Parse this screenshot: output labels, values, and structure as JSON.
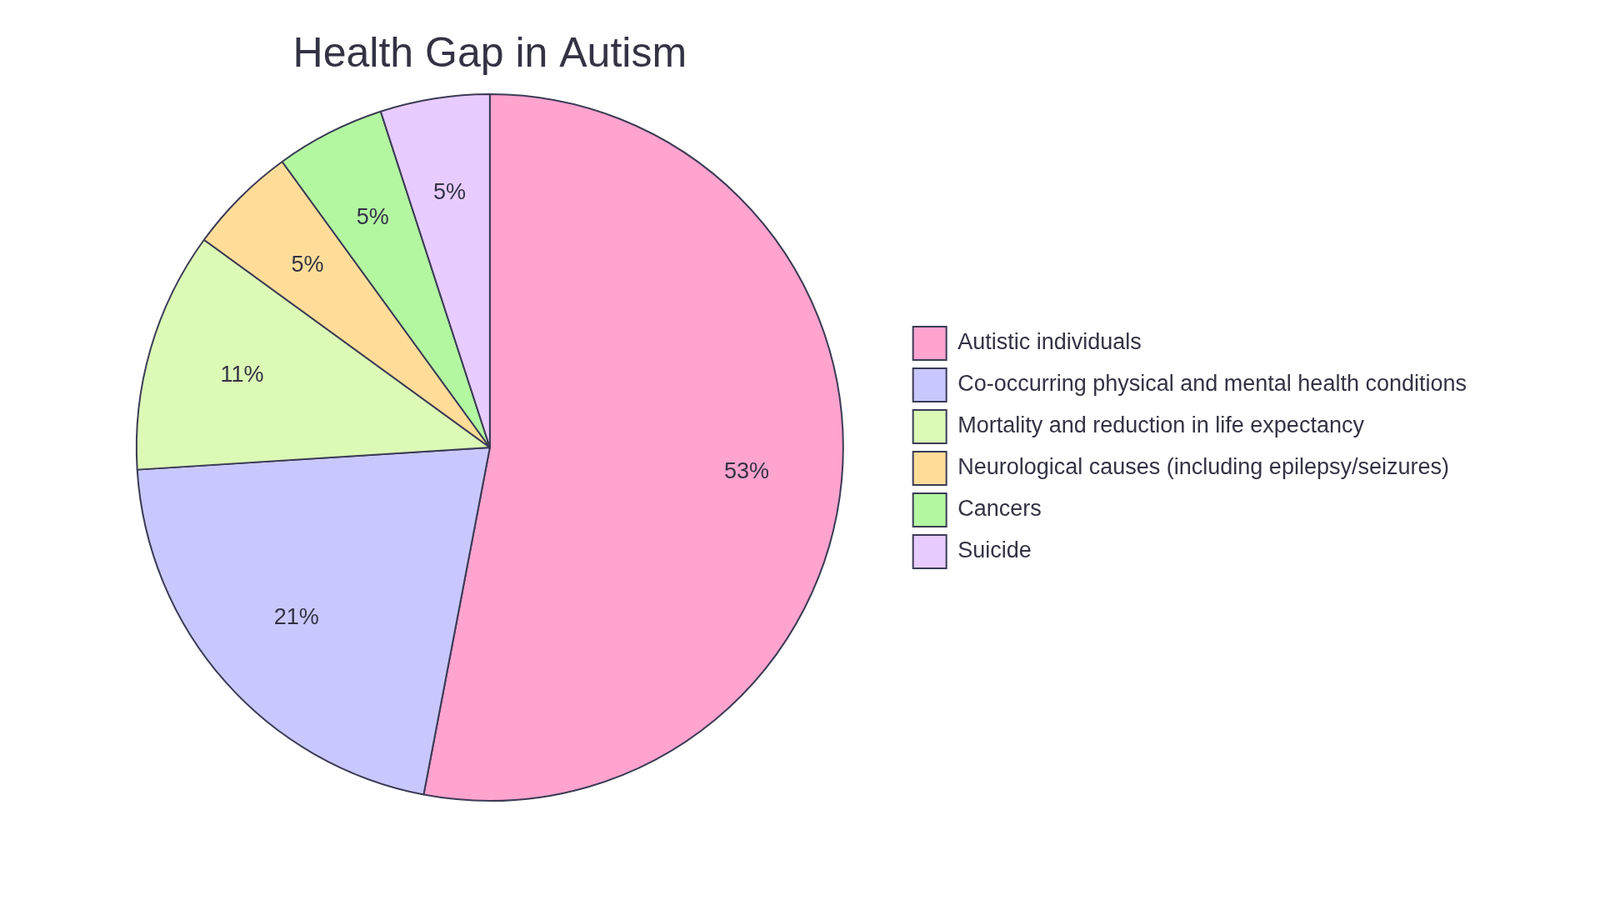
{
  "chart_data": {
    "type": "pie",
    "title": "Health Gap in Autism",
    "categories": [
      "Autistic individuals",
      "Co-occurring physical and mental health conditions",
      "Mortality and reduction in life expectancy",
      "Neurological causes (including epilepsy/seizures)",
      "Cancers",
      "Suicide"
    ],
    "values": [
      53,
      21,
      11,
      5,
      5,
      5
    ],
    "value_labels": [
      "53%",
      "21%",
      "11%",
      "5%",
      "5%",
      "5%"
    ],
    "colors": [
      "#ffa3cf",
      "#c8c8ff",
      "#dcf9b6",
      "#ffdd99",
      "#b3f7a1",
      "#e8ccff"
    ],
    "data_labels": true,
    "legend": "right"
  }
}
